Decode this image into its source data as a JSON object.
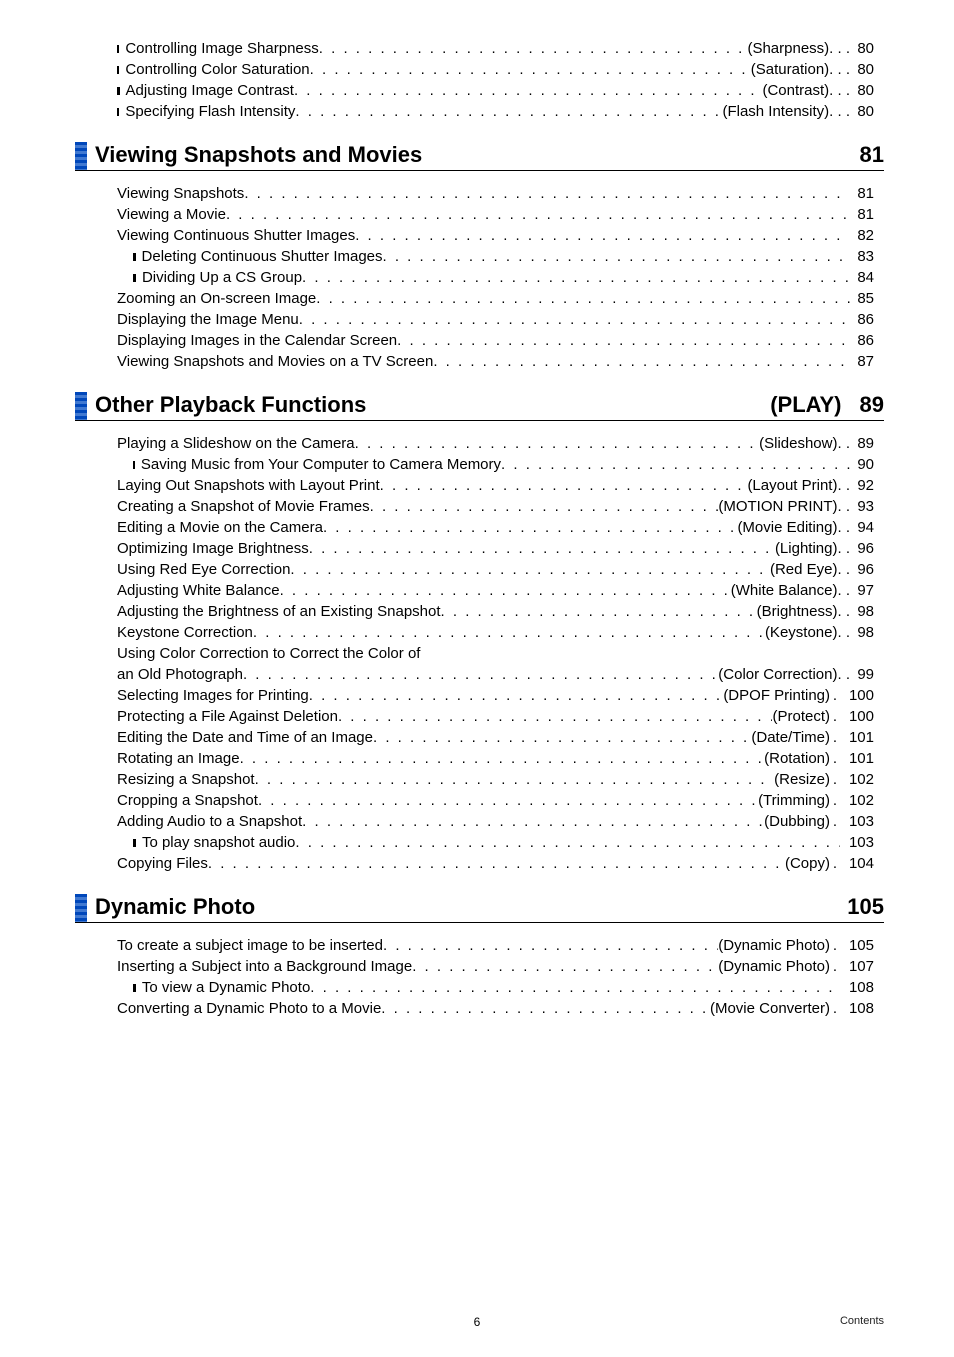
{
  "pre": [
    {
      "label": "Controlling Image Sharpness",
      "tag": "(Sharpness)",
      "sep": ". . .",
      "page": "80"
    },
    {
      "label": "Controlling Color Saturation",
      "tag": "(Saturation)",
      "sep": ". . .",
      "page": "80"
    },
    {
      "label": "Adjusting Image Contrast",
      "tag": "(Contrast)",
      "sep": ". . .",
      "page": "80"
    },
    {
      "label": "Specifying Flash Intensity",
      "tag": "(Flash Intensity)",
      "sep": ". . .",
      "page": "80"
    }
  ],
  "section1": {
    "title": "Viewing Snapshots and Movies",
    "page": "81",
    "entries": [
      {
        "type": "main",
        "label": "Viewing Snapshots",
        "page": "81"
      },
      {
        "type": "main",
        "label": "Viewing a Movie",
        "page": "81"
      },
      {
        "type": "main",
        "label": "Viewing Continuous Shutter Images",
        "page": "82"
      },
      {
        "type": "sub",
        "label": "Deleting Continuous Shutter Images",
        "page": "83"
      },
      {
        "type": "sub",
        "label": "Dividing Up a CS Group",
        "page": "84"
      },
      {
        "type": "main",
        "label": "Zooming an On-screen Image",
        "page": "85"
      },
      {
        "type": "main",
        "label": "Displaying the Image Menu",
        "page": "86"
      },
      {
        "type": "main",
        "label": "Displaying Images in the Calendar Screen",
        "page": "86"
      },
      {
        "type": "main",
        "label": "Viewing Snapshots and Movies on a TV Screen",
        "page": "87"
      }
    ]
  },
  "section2": {
    "title": "Other Playback Functions",
    "suffix": "(PLAY)",
    "page": "89",
    "entries": [
      {
        "type": "main",
        "label": "Playing a Slideshow on the Camera",
        "tag": "(Slideshow)",
        "sep": ". .",
        "page": "89"
      },
      {
        "type": "sub",
        "label": "Saving Music from Your Computer to Camera Memory",
        "page": "90"
      },
      {
        "type": "main",
        "label": "Laying Out Snapshots with Layout Print",
        "tag": "(Layout Print)",
        "sep": ". .",
        "page": "92"
      },
      {
        "type": "main",
        "label": "Creating a Snapshot of Movie Frames",
        "tag": "(MOTION PRINT)",
        "sep": ". .",
        "page": "93"
      },
      {
        "type": "main",
        "label": "Editing a Movie on the Camera",
        "tag": "(Movie Editing)",
        "sep": ". .",
        "page": "94"
      },
      {
        "type": "main",
        "label": "Optimizing Image Brightness",
        "tag": "(Lighting)",
        "sep": ". .",
        "page": "96"
      },
      {
        "type": "main",
        "label": "Using Red Eye Correction",
        "tag": "(Red Eye)",
        "sep": ". .",
        "page": "96"
      },
      {
        "type": "main",
        "label": "Adjusting White Balance",
        "tag": "(White Balance)",
        "sep": ". .",
        "page": "97"
      },
      {
        "type": "main",
        "label": "Adjusting the Brightness of an Existing Snapshot",
        "tag": "(Brightness)",
        "sep": ". .",
        "page": "98"
      },
      {
        "type": "main",
        "label": "Keystone Correction",
        "tag": "(Keystone)",
        "sep": ". .",
        "page": "98"
      },
      {
        "type": "main-2line",
        "line1": "Using Color Correction to Correct the Color of",
        "label": "an Old Photograph",
        "tag": "(Color Correction)",
        "sep": ". .",
        "page": "99"
      },
      {
        "type": "main",
        "label": "Selecting Images for Printing",
        "tag": "(DPOF Printing)",
        "sep": ".",
        "page": "100"
      },
      {
        "type": "main",
        "label": "Protecting a File Against Deletion",
        "tag": "(Protect)",
        "sep": ".",
        "page": "100"
      },
      {
        "type": "main",
        "label": "Editing the Date and Time of an Image",
        "tag": "(Date/Time)",
        "sep": ".",
        "page": "101"
      },
      {
        "type": "main",
        "label": "Rotating an Image",
        "tag": "(Rotation)",
        "sep": ".",
        "page": "101"
      },
      {
        "type": "main",
        "label": "Resizing a Snapshot",
        "tag": "(Resize)",
        "sep": ".",
        "page": "102"
      },
      {
        "type": "main",
        "label": "Cropping a Snapshot",
        "tag": "(Trimming)",
        "sep": ".",
        "page": "102"
      },
      {
        "type": "main",
        "label": "Adding Audio to a Snapshot",
        "tag": "(Dubbing)",
        "sep": ".",
        "page": "103"
      },
      {
        "type": "sub",
        "label": "To play snapshot audio",
        "page": "103"
      },
      {
        "type": "main",
        "label": "Copying Files",
        "tag": "(Copy)",
        "sep": ".",
        "page": "104"
      }
    ]
  },
  "section3": {
    "title": "Dynamic Photo",
    "page": "105",
    "entries": [
      {
        "type": "main",
        "label": "To create a subject image to be inserted",
        "tag": "(Dynamic Photo)",
        "sep": ".",
        "page": "105"
      },
      {
        "type": "main",
        "label": "Inserting a Subject into a Background Image",
        "tag": "(Dynamic Photo)",
        "sep": ".",
        "page": "107"
      },
      {
        "type": "sub",
        "label": "To view a Dynamic Photo",
        "page": "108"
      },
      {
        "type": "main",
        "label": "Converting a Dynamic Photo to a Movie",
        "tag": "(Movie Converter)",
        "sep": ".",
        "page": "108"
      }
    ]
  },
  "footer": {
    "page": "6",
    "label": "Contents"
  }
}
